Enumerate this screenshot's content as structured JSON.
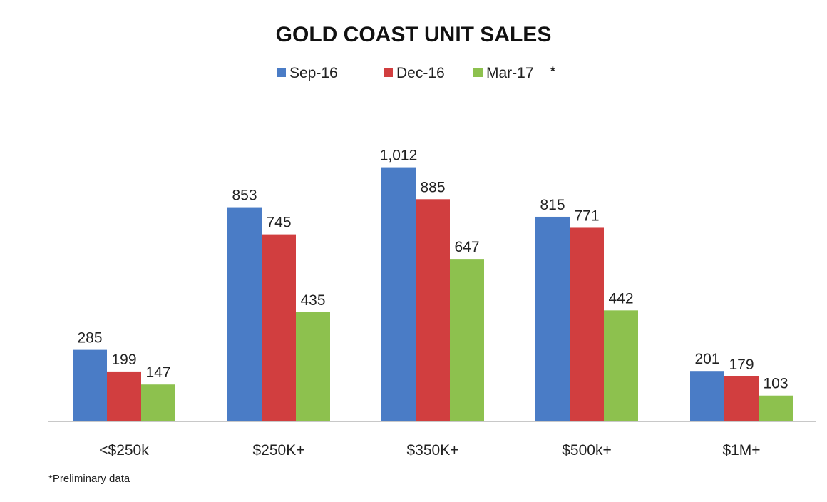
{
  "chart_data": {
    "type": "bar",
    "title": "GOLD COAST UNIT SALES",
    "xlabel": "",
    "ylabel": "",
    "categories": [
      "<$250k",
      "$250K+",
      "$350K+",
      "$500k+",
      "$1M+"
    ],
    "series": [
      {
        "name": "Sep-16",
        "color": "#4a7cc6",
        "values": [
          285,
          853,
          1012,
          815,
          201
        ],
        "labels": [
          "285",
          "853",
          "1,012",
          "815",
          "201"
        ]
      },
      {
        "name": "Dec-16",
        "color": "#d13e3f",
        "values": [
          199,
          745,
          885,
          771,
          179
        ],
        "labels": [
          "199",
          "745",
          "885",
          "771",
          "179"
        ]
      },
      {
        "name": "Mar-17",
        "color": "#8dc14e",
        "values": [
          147,
          435,
          647,
          442,
          103
        ],
        "labels": [
          "147",
          "435",
          "647",
          "442",
          "103"
        ]
      }
    ],
    "legend_marker": "*",
    "legend_position": "top-center",
    "ylim": [
      0,
      1100
    ],
    "grid": false,
    "footnote": "*Preliminary data"
  }
}
